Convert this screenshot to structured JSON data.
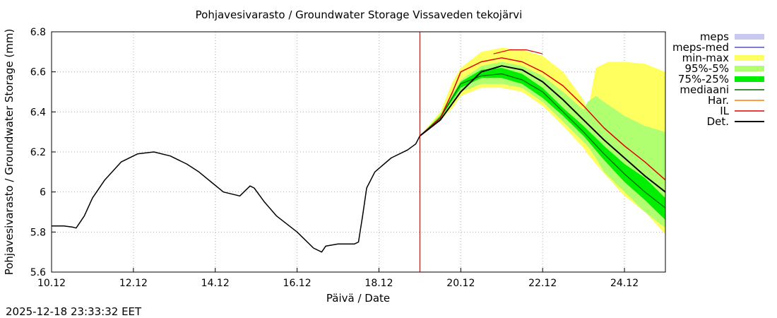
{
  "chart_data": {
    "type": "line",
    "title": "Pohjavesivarasto / Groundwater Storage   Vissaveden tekojärvi",
    "xlabel": "Päivä / Date",
    "ylabel": "Pohjavesivarasto / Groundwater Storage (mm)",
    "xlim": [
      0,
      15
    ],
    "ylim": [
      5.6,
      6.8
    ],
    "x_tick_labels": [
      "10.12",
      "12.12",
      "14.12",
      "16.12",
      "18.12",
      "20.12",
      "22.12",
      "24.12"
    ],
    "y_tick_labels": [
      "5.6",
      "5.8",
      "6",
      "6.2",
      "6.4",
      "6.6",
      "6.8"
    ],
    "forecast_start_x": 9.0,
    "grid": true,
    "legend_position": "outside-right",
    "legend": [
      {
        "label": "meps",
        "color": "#c8c8f0",
        "kind": "band"
      },
      {
        "label": "meps-med",
        "color": "#5050c0",
        "kind": "line"
      },
      {
        "label": "min-max",
        "color": "#ffff60",
        "kind": "band"
      },
      {
        "label": "95%-5%",
        "color": "#b0ff70",
        "kind": "band"
      },
      {
        "label": "75%-25%",
        "color": "#00ee00",
        "kind": "band"
      },
      {
        "label": "mediaani",
        "color": "#006400",
        "kind": "line"
      },
      {
        "label": "Har.",
        "color": "#ff8000",
        "kind": "line"
      },
      {
        "label": "IL",
        "color": "#e00000",
        "kind": "line"
      },
      {
        "label": "Det.",
        "color": "#000000",
        "kind": "line"
      }
    ],
    "series": {
      "observed": {
        "name": "Det. (history)",
        "x": [
          0,
          0.3,
          0.5,
          0.6,
          0.8,
          1.0,
          1.3,
          1.7,
          2.1,
          2.5,
          2.9,
          3.3,
          3.6,
          3.9,
          4.2,
          4.6,
          4.75,
          4.85,
          4.95,
          5.2,
          5.5,
          6.0,
          6.4,
          6.6,
          6.7,
          7.0,
          7.4,
          7.5,
          7.6,
          7.7,
          7.9,
          8.3,
          8.7,
          8.9,
          9.0
        ],
        "y": [
          5.83,
          5.83,
          5.825,
          5.82,
          5.88,
          5.97,
          6.06,
          6.15,
          6.19,
          6.2,
          6.18,
          6.14,
          6.1,
          6.05,
          6.0,
          5.98,
          6.01,
          6.03,
          6.02,
          5.95,
          5.88,
          5.8,
          5.72,
          5.7,
          5.73,
          5.74,
          5.74,
          5.75,
          5.88,
          6.02,
          6.1,
          6.17,
          6.21,
          6.24,
          6.28
        ]
      },
      "min_max": {
        "x": [
          9.0,
          9.5,
          9.8,
          10.0,
          10.5,
          11.0,
          11.5,
          12.0,
          12.5,
          13.0,
          13.1,
          13.3,
          13.6,
          14.0,
          14.5,
          15.0
        ],
        "upper": [
          6.28,
          6.4,
          6.55,
          6.62,
          6.7,
          6.72,
          6.71,
          6.68,
          6.6,
          6.46,
          6.4,
          6.62,
          6.65,
          6.65,
          6.64,
          6.6
        ],
        "lower": [
          6.28,
          6.36,
          6.42,
          6.48,
          6.52,
          6.52,
          6.5,
          6.43,
          6.33,
          6.22,
          6.19,
          6.14,
          6.07,
          5.98,
          5.9,
          5.79
        ]
      },
      "p95_5": {
        "x": [
          9.0,
          9.5,
          10.0,
          10.5,
          11.0,
          11.5,
          12.0,
          12.5,
          13.0,
          13.1,
          13.3,
          13.5,
          14.0,
          14.5,
          15.0
        ],
        "upper": [
          6.28,
          6.39,
          6.56,
          6.63,
          6.65,
          6.63,
          6.58,
          6.5,
          6.41,
          6.45,
          6.48,
          6.45,
          6.38,
          6.33,
          6.3
        ],
        "lower": [
          6.28,
          6.36,
          6.5,
          6.54,
          6.54,
          6.52,
          6.45,
          6.35,
          6.25,
          6.23,
          6.17,
          6.1,
          6.0,
          5.9,
          5.82
        ]
      },
      "p75_25": {
        "x": [
          9.0,
          9.5,
          10.0,
          10.5,
          11.0,
          11.5,
          12.0,
          12.5,
          13.0,
          13.5,
          14.0,
          14.5,
          15.0
        ],
        "upper": [
          6.28,
          6.38,
          6.55,
          6.61,
          6.62,
          6.59,
          6.52,
          6.42,
          6.33,
          6.23,
          6.14,
          6.07,
          5.97
        ],
        "lower": [
          6.28,
          6.37,
          6.52,
          6.57,
          6.57,
          6.54,
          6.47,
          6.38,
          6.28,
          6.16,
          6.05,
          5.96,
          5.86
        ]
      },
      "mediaani": {
        "x": [
          9.0,
          9.5,
          10.0,
          10.5,
          11.0,
          11.5,
          12.0,
          12.5,
          13.0,
          13.5,
          14.0,
          14.5,
          15.0
        ],
        "y": [
          6.28,
          6.37,
          6.54,
          6.58,
          6.59,
          6.56,
          6.5,
          6.4,
          6.3,
          6.19,
          6.09,
          6.0,
          5.92
        ]
      },
      "il": {
        "x": [
          9.0,
          9.5,
          9.8,
          10.0,
          10.5,
          11.0,
          11.5,
          12.0,
          12.5,
          13.0,
          13.5,
          14.0,
          14.5,
          15.0
        ],
        "y": [
          6.28,
          6.37,
          6.5,
          6.6,
          6.65,
          6.67,
          6.65,
          6.6,
          6.53,
          6.43,
          6.32,
          6.23,
          6.15,
          6.06
        ]
      },
      "il_upper": {
        "x": [
          10.8,
          11.2,
          11.6,
          12.0
        ],
        "y": [
          6.69,
          6.71,
          6.71,
          6.69
        ]
      },
      "det_forecast": {
        "x": [
          9.0,
          9.5,
          10.0,
          10.5,
          11.0,
          11.5,
          12.0,
          12.5,
          13.0,
          13.5,
          14.0,
          14.5,
          15.0
        ],
        "y": [
          6.28,
          6.36,
          6.5,
          6.6,
          6.63,
          6.61,
          6.55,
          6.46,
          6.36,
          6.26,
          6.17,
          6.08,
          6.0
        ]
      }
    }
  },
  "footer": {
    "timestamp": "2025-12-18 23:33:32 EET"
  }
}
